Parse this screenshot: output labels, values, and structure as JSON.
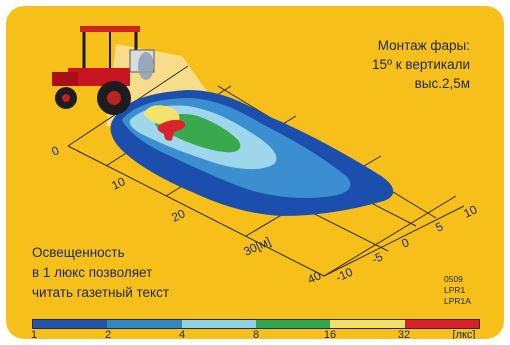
{
  "caption": {
    "line1": "Монтаж фары:",
    "line2": "15º к вертикали",
    "line3": "выс.2,5м"
  },
  "note": {
    "line1": "Освещенность",
    "line2": "в 1 люкс позволяет",
    "line3": "читать газетный текст"
  },
  "codes": [
    "0509",
    "LPR1",
    "LPR1A"
  ],
  "grid": {
    "distance_ticks": [
      "0",
      "10",
      "20",
      "30[м]",
      "40"
    ],
    "lateral_ticks": [
      "10",
      "5",
      "0",
      "-5",
      "-10"
    ]
  },
  "scale": {
    "labels": [
      "1",
      "2",
      "4",
      "8",
      "16",
      "32",
      "[лкс]"
    ],
    "colors": [
      "#1f55b0",
      "#2f86c8",
      "#8fd2e8",
      "#2fa74f",
      "#f1e06a",
      "#d8202a"
    ]
  },
  "contour_colors": {
    "outer": "#1c4fad",
    "level2": "#3b8fd0",
    "level3": "#9ed7ec",
    "level4": "#3aa84c",
    "level5": "#f3e36a",
    "level6": "#d9242b"
  }
}
